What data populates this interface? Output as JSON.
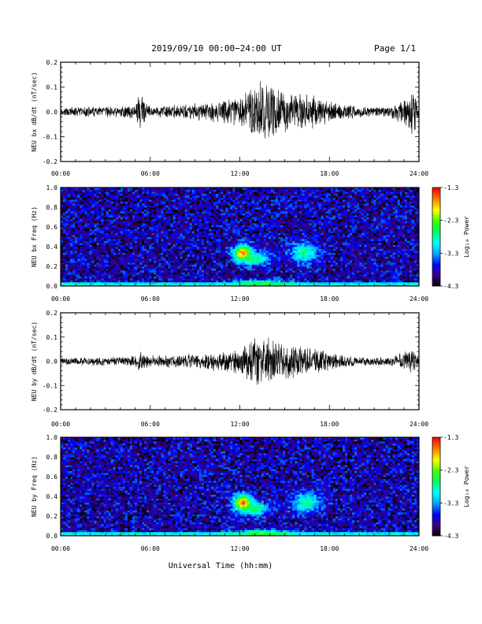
{
  "header": {
    "date_range": "2019/09/10  00:00−24:00 UT",
    "page": "Page 1/1"
  },
  "xlabel": "Universal Time (hh:mm)",
  "colors": {
    "trace": "#000000",
    "frame": "#000000",
    "colormap": [
      "#000000",
      "#3a0080",
      "#0000ff",
      "#00a0ff",
      "#00ffff",
      "#00ff60",
      "#40ff00",
      "#ffff00",
      "#ff8000",
      "#ff0000"
    ]
  },
  "chart_data": [
    {
      "type": "line",
      "ylabel": "NEU bx dB/dt (nT/sec)",
      "xlim": [
        0,
        24
      ],
      "ylim": [
        -0.2,
        0.2
      ],
      "xticks": [
        "00:00",
        "06:00",
        "12:00",
        "18:00",
        "24:00"
      ],
      "yticks": [
        "-0.2",
        "-0.1",
        "0.0",
        "0.1",
        "0.2"
      ],
      "envelope": {
        "x": [
          0,
          2,
          4,
          5,
          5.3,
          5.7,
          6,
          8,
          9,
          10,
          11,
          12,
          12.5,
          13,
          13.5,
          14,
          15,
          16,
          17,
          18,
          20,
          22,
          23.7,
          24
        ],
        "y": [
          0.02,
          0.022,
          0.025,
          0.03,
          0.1,
          0.04,
          0.025,
          0.03,
          0.035,
          0.045,
          0.06,
          0.07,
          0.11,
          0.14,
          0.15,
          0.12,
          0.09,
          0.085,
          0.07,
          0.045,
          0.025,
          0.02,
          0.1,
          0.02
        ]
      }
    },
    {
      "type": "heatmap",
      "ylabel": "NEU bx Freq (Hz)",
      "xlim": [
        0,
        24
      ],
      "ylim": [
        0,
        1
      ],
      "xticks": [
        "00:00",
        "06:00",
        "12:00",
        "18:00",
        "24:00"
      ],
      "yticks": [
        "0.0",
        "0.2",
        "0.4",
        "0.6",
        "0.8",
        "1.0"
      ],
      "colorbar": {
        "label": "Log₁₀ Power",
        "ticks": [
          "-1.3",
          "-2.3",
          "-3.3",
          "-4.3"
        ],
        "range": [
          -4.3,
          -1.3
        ]
      },
      "features": [
        {
          "t": 12.2,
          "f": 0.34,
          "dt": 0.6,
          "df": 0.08,
          "peak": -1.6
        },
        {
          "t": 13.0,
          "f": 0.28,
          "dt": 1.0,
          "df": 0.07,
          "peak": -2.6
        },
        {
          "t": 16.3,
          "f": 0.34,
          "dt": 0.9,
          "df": 0.1,
          "peak": -2.7
        },
        {
          "t": 13.5,
          "f": 0.03,
          "dt": 2.0,
          "df": 0.03,
          "peak": -2.4
        }
      ]
    },
    {
      "type": "line",
      "ylabel": "NEU by dB/dt (nT/sec)",
      "xlim": [
        0,
        24
      ],
      "ylim": [
        -0.2,
        0.2
      ],
      "xticks": [
        "00:00",
        "06:00",
        "12:00",
        "18:00",
        "24:00"
      ],
      "yticks": [
        "-0.2",
        "-0.1",
        "0.0",
        "0.1",
        "0.2"
      ],
      "envelope": {
        "x": [
          0,
          2,
          4,
          5,
          5.3,
          5.7,
          6,
          8,
          9,
          10,
          11,
          12,
          12.5,
          13,
          13.5,
          14,
          15,
          16,
          17,
          18,
          20,
          22,
          23.7,
          24
        ],
        "y": [
          0.015,
          0.018,
          0.02,
          0.025,
          0.06,
          0.03,
          0.025,
          0.03,
          0.035,
          0.04,
          0.05,
          0.06,
          0.08,
          0.11,
          0.13,
          0.11,
          0.08,
          0.075,
          0.06,
          0.04,
          0.02,
          0.018,
          0.06,
          0.015
        ]
      }
    },
    {
      "type": "heatmap",
      "ylabel": "NEU by Freq (Hz)",
      "xlim": [
        0,
        24
      ],
      "ylim": [
        0,
        1
      ],
      "xticks": [
        "00:00",
        "06:00",
        "12:00",
        "18:00",
        "24:00"
      ],
      "yticks": [
        "0.0",
        "0.2",
        "0.4",
        "0.6",
        "0.8",
        "1.0"
      ],
      "colorbar": {
        "label": "Log₁₀ Power",
        "ticks": [
          "-1.3",
          "-2.3",
          "-3.3",
          "-4.3"
        ],
        "range": [
          -4.3,
          -1.3
        ]
      },
      "features": [
        {
          "t": 12.2,
          "f": 0.34,
          "dt": 0.6,
          "df": 0.08,
          "peak": -1.6
        },
        {
          "t": 13.0,
          "f": 0.28,
          "dt": 1.0,
          "df": 0.07,
          "peak": -2.6
        },
        {
          "t": 16.5,
          "f": 0.34,
          "dt": 0.9,
          "df": 0.1,
          "peak": -2.7
        },
        {
          "t": 13.5,
          "f": 0.03,
          "dt": 2.0,
          "df": 0.03,
          "peak": -2.4
        }
      ]
    }
  ]
}
